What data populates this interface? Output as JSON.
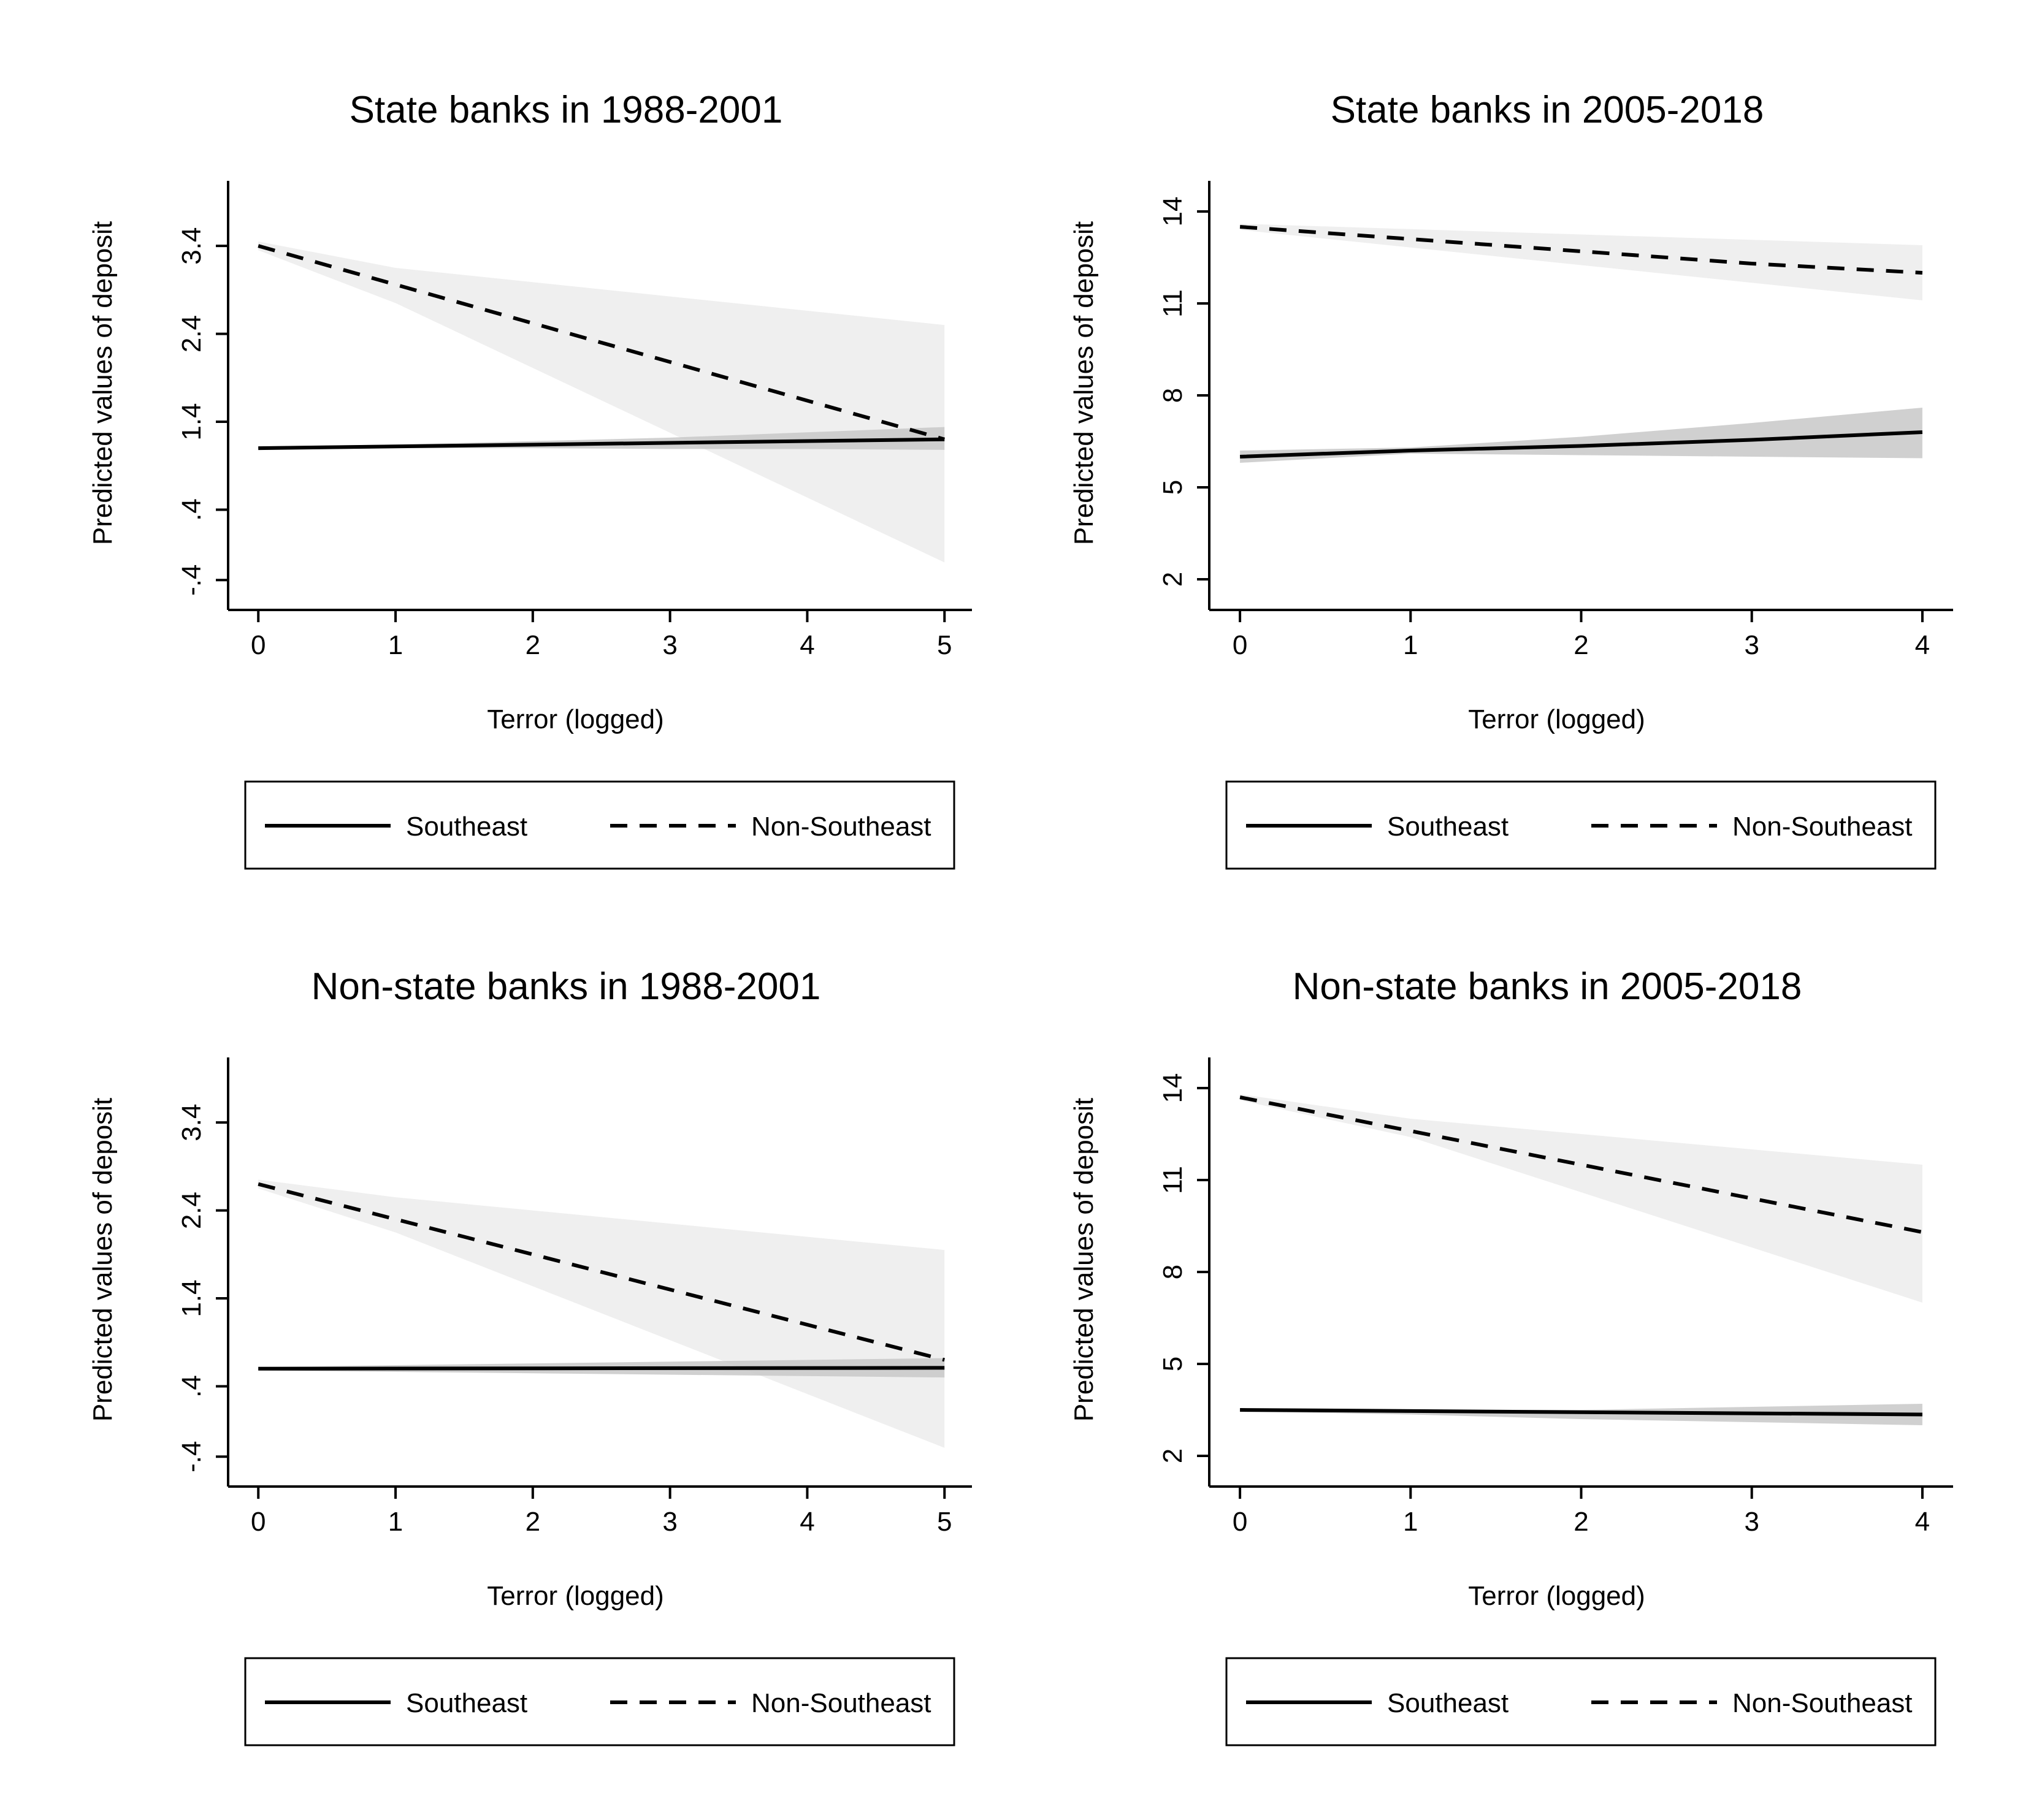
{
  "colors": {
    "line": "#000000",
    "ci_non_southeast": "#efefef",
    "ci_southeast": "#c8c8c8",
    "background": "#ffffff"
  },
  "legend": {
    "southeast_label": "Southeast",
    "non_southeast_label": "Non-Southeast"
  },
  "chart_data": [
    {
      "type": "line",
      "title": "State banks in 1988-2001",
      "xlabel": "Terror (logged)",
      "ylabel": "Predicted values of deposit",
      "xlim": [
        -0.22,
        5.2
      ],
      "ylim": [
        -0.74,
        4.14
      ],
      "xticks": [
        0,
        1,
        2,
        3,
        4,
        5
      ],
      "xtick_labels": [
        "0",
        "1",
        "2",
        "3",
        "4",
        "5"
      ],
      "yticks": [
        -0.4,
        0.4,
        1.4,
        2.4,
        3.4
      ],
      "ytick_labels": [
        "-.4",
        ".4",
        "1.4",
        "2.4",
        "3.4"
      ],
      "legend_position": "bottom",
      "series": [
        {
          "name": "Southeast",
          "style": "solid",
          "x": [
            0,
            5
          ],
          "y": [
            1.1,
            1.2
          ],
          "ci_x": [
            0,
            1,
            2,
            3,
            4,
            5
          ],
          "ci_lower": [
            1.08,
            1.1,
            1.1,
            1.09,
            1.09,
            1.08
          ],
          "ci_upper": [
            1.12,
            1.14,
            1.18,
            1.22,
            1.28,
            1.34
          ]
        },
        {
          "name": "Non-Southeast",
          "style": "dashed",
          "x": [
            0,
            5
          ],
          "y": [
            3.4,
            1.2
          ],
          "ci_x": [
            0,
            1,
            5
          ],
          "ci_lower": [
            3.35,
            2.75,
            -0.2
          ],
          "ci_upper": [
            3.45,
            3.15,
            2.5
          ]
        }
      ]
    },
    {
      "type": "line",
      "title": "State banks in 2005-2018",
      "xlabel": "Terror (logged)",
      "ylabel": "Predicted values of deposit",
      "xlim": [
        -0.18,
        4.18
      ],
      "ylim": [
        1.0,
        15.0
      ],
      "xticks": [
        0,
        1,
        2,
        3,
        4
      ],
      "xtick_labels": [
        "0",
        "1",
        "2",
        "3",
        "4"
      ],
      "yticks": [
        2,
        5,
        8,
        11,
        14
      ],
      "ytick_labels": [
        "2",
        "5",
        "8",
        "11",
        "14"
      ],
      "legend_position": "bottom",
      "series": [
        {
          "name": "Southeast",
          "style": "solid",
          "x": [
            0,
            1,
            2,
            3,
            4
          ],
          "y": [
            6.0,
            6.2,
            6.35,
            6.55,
            6.8
          ],
          "ci_x": [
            0,
            1,
            2,
            3,
            4
          ],
          "ci_lower": [
            5.8,
            6.1,
            6.05,
            6.0,
            5.95
          ],
          "ci_upper": [
            6.2,
            6.3,
            6.65,
            7.1,
            7.6
          ]
        },
        {
          "name": "Non-Southeast",
          "style": "dashed",
          "x": [
            0,
            1,
            2,
            3,
            4
          ],
          "y": [
            13.5,
            13.1,
            12.7,
            12.3,
            12.0
          ],
          "ci_x": [
            0,
            4
          ],
          "ci_lower": [
            13.4,
            11.1
          ],
          "ci_upper": [
            13.6,
            12.9
          ]
        }
      ]
    },
    {
      "type": "line",
      "title": "Non-state banks in 1988-2001",
      "xlabel": "Terror (logged)",
      "ylabel": "Predicted values of deposit",
      "xlim": [
        -0.22,
        5.2
      ],
      "ylim": [
        -0.74,
        4.14
      ],
      "xticks": [
        0,
        1,
        2,
        3,
        4,
        5
      ],
      "xtick_labels": [
        "0",
        "1",
        "2",
        "3",
        "4",
        "5"
      ],
      "yticks": [
        -0.4,
        0.4,
        1.4,
        2.4,
        3.4
      ],
      "ytick_labels": [
        "-.4",
        ".4",
        "1.4",
        "2.4",
        "3.4"
      ],
      "legend_position": "bottom",
      "series": [
        {
          "name": "Southeast",
          "style": "solid",
          "x": [
            0,
            5
          ],
          "y": [
            0.6,
            0.61
          ],
          "ci_x": [
            0,
            5
          ],
          "ci_lower": [
            0.58,
            0.5
          ],
          "ci_upper": [
            0.62,
            0.72
          ]
        },
        {
          "name": "Non-Southeast",
          "style": "dashed",
          "x": [
            0,
            5
          ],
          "y": [
            2.7,
            0.7
          ],
          "ci_x": [
            0,
            1,
            5
          ],
          "ci_lower": [
            2.65,
            2.15,
            -0.3
          ],
          "ci_upper": [
            2.75,
            2.55,
            1.95
          ]
        }
      ]
    },
    {
      "type": "line",
      "title": "Non-state banks in 2005-2018",
      "xlabel": "Terror (logged)",
      "ylabel": "Predicted values of deposit",
      "xlim": [
        -0.18,
        4.18
      ],
      "ylim": [
        1.0,
        15.0
      ],
      "xticks": [
        0,
        1,
        2,
        3,
        4
      ],
      "xtick_labels": [
        "0",
        "1",
        "2",
        "3",
        "4"
      ],
      "yticks": [
        2,
        5,
        8,
        11,
        14
      ],
      "ytick_labels": [
        "2",
        "5",
        "8",
        "11",
        "14"
      ],
      "legend_position": "bottom",
      "series": [
        {
          "name": "Southeast",
          "style": "solid",
          "x": [
            0,
            4
          ],
          "y": [
            3.5,
            3.35
          ],
          "ci_x": [
            0,
            1,
            2,
            3,
            4
          ],
          "ci_lower": [
            3.45,
            3.35,
            3.2,
            3.1,
            3.0
          ],
          "ci_upper": [
            3.55,
            3.5,
            3.5,
            3.6,
            3.7
          ]
        },
        {
          "name": "Non-Southeast",
          "style": "dashed",
          "x": [
            0,
            4
          ],
          "y": [
            13.7,
            9.3
          ],
          "ci_x": [
            0,
            1,
            4
          ],
          "ci_lower": [
            13.6,
            12.4,
            7.0
          ],
          "ci_upper": [
            13.8,
            13.0,
            11.5
          ]
        }
      ]
    }
  ]
}
